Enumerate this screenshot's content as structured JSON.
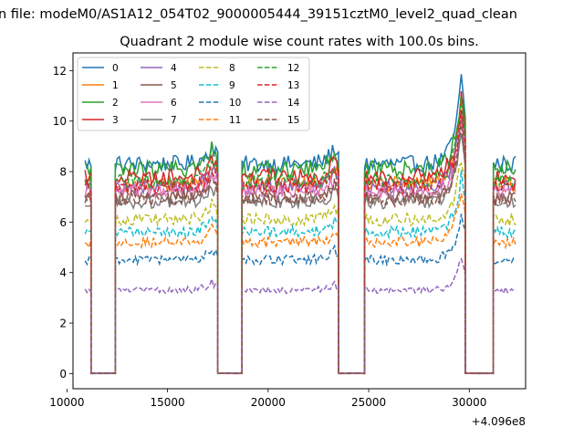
{
  "figure": {
    "suptitle": "n file: modeM0/AS1A12_054T02_9000005444_39151cztM0_level2_quad_clean",
    "title": "Quadrant 2 module wise count rates with 100.0s bins."
  },
  "chart_data": {
    "type": "line",
    "title": "Quadrant 2 module wise count rates with 100.0s bins.",
    "xlabel": "",
    "ylabel": "",
    "x_offset_label": "+4.096e8",
    "xlim": [
      10300,
      32800
    ],
    "ylim": [
      -0.6,
      12.7
    ],
    "xticks": [
      10000,
      15000,
      20000,
      25000,
      30000
    ],
    "yticks": [
      0,
      2,
      4,
      6,
      8,
      10,
      12
    ],
    "grid": false,
    "legend": {
      "placement": "top-left",
      "columns": 4
    },
    "segments": [
      {
        "x_start": 10900,
        "x_end": 11200,
        "kind": "on"
      },
      {
        "x_start": 11200,
        "x_end": 12400,
        "kind": "gap"
      },
      {
        "x_start": 12400,
        "x_end": 17500,
        "kind": "on",
        "peak_x": 17200,
        "peak_factor": 1.1
      },
      {
        "x_start": 17500,
        "x_end": 18700,
        "kind": "gap"
      },
      {
        "x_start": 18700,
        "x_end": 23500,
        "kind": "on",
        "peak_x": 23300,
        "peak_factor": 1.08
      },
      {
        "x_start": 23500,
        "x_end": 24800,
        "kind": "gap"
      },
      {
        "x_start": 24800,
        "x_end": 29800,
        "kind": "on",
        "peak_x": 29600,
        "peak_factor": 1.4
      },
      {
        "x_start": 29800,
        "x_end": 31200,
        "kind": "gap"
      },
      {
        "x_start": 31200,
        "x_end": 32300,
        "kind": "on"
      }
    ],
    "series": [
      {
        "name": "0",
        "color": "#1f77b4",
        "dash": "solid",
        "level": 8.3
      },
      {
        "name": "1",
        "color": "#ff7f0e",
        "dash": "solid",
        "level": 7.5
      },
      {
        "name": "2",
        "color": "#2ca02c",
        "dash": "solid",
        "level": 8.1
      },
      {
        "name": "3",
        "color": "#d62728",
        "dash": "solid",
        "level": 7.8
      },
      {
        "name": "4",
        "color": "#9467bd",
        "dash": "solid",
        "level": 7.4
      },
      {
        "name": "5",
        "color": "#8c564b",
        "dash": "solid",
        "level": 7.0
      },
      {
        "name": "6",
        "color": "#e377c2",
        "dash": "solid",
        "level": 7.2
      },
      {
        "name": "7",
        "color": "#7f7f7f",
        "dash": "solid",
        "level": 6.8
      },
      {
        "name": "8",
        "color": "#bcbd22",
        "dash": "dashed",
        "level": 6.1
      },
      {
        "name": "9",
        "color": "#17becf",
        "dash": "dashed",
        "level": 5.6
      },
      {
        "name": "10",
        "color": "#1f77b4",
        "dash": "dashed",
        "level": 4.5
      },
      {
        "name": "11",
        "color": "#ff7f0e",
        "dash": "dashed",
        "level": 5.2
      },
      {
        "name": "12",
        "color": "#2ca02c",
        "dash": "dashed",
        "level": 7.6
      },
      {
        "name": "13",
        "color": "#d62728",
        "dash": "dashed",
        "level": 7.4
      },
      {
        "name": "14",
        "color": "#9467bd",
        "dash": "dashed",
        "level": 3.3
      },
      {
        "name": "15",
        "color": "#8c564b",
        "dash": "dashed",
        "level": 6.9
      }
    ]
  }
}
